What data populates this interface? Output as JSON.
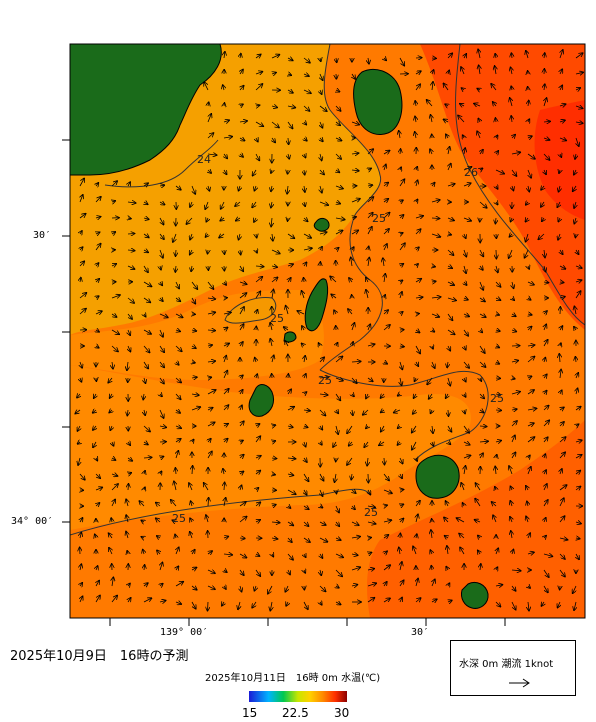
{
  "forecast_title": "2025年10月9日　16時の予測",
  "scale_title": "2025年10月11日　16時 0m 水温(℃)",
  "colorbar": {
    "ticks": [
      "15",
      "22.5",
      "30"
    ],
    "colors": [
      "#1a1ad6",
      "#00b4ff",
      "#00c850",
      "#c8e600",
      "#ffd200",
      "#ff8c00",
      "#ff3000",
      "#8b0000"
    ]
  },
  "legend": {
    "text": "水深 0m  潮流 1knot",
    "arrow_icon": "arrow-right"
  },
  "axes": {
    "lon_labels": [
      "139° 00′",
      "30′"
    ],
    "lat_labels": [
      "30′",
      "34° 00′"
    ]
  },
  "contour_labels": [
    "24",
    "26",
    "25",
    "25",
    "25",
    "25",
    "25",
    "25"
  ],
  "colors": {
    "land": "#1a6b1a",
    "sst_warm": "#ff6a00",
    "sst_mid": "#ff8c00",
    "sst_cool": "#f5a300",
    "sst_hot": "#ff3c00",
    "sst_core": "#ff2a00"
  }
}
